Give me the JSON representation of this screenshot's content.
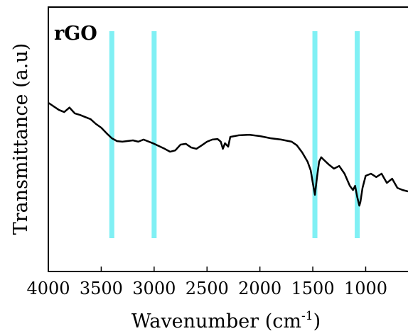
{
  "chart_data": {
    "type": "line",
    "annotation": "rGO",
    "xlabel": {
      "text": "Wavenumber (cm",
      "sup": "-1",
      "end": ")"
    },
    "ylabel": "Transmittance (a.u)",
    "xlim": [
      4000,
      600
    ],
    "ylim": [
      0,
      100
    ],
    "xticks": [
      4000,
      3500,
      3000,
      2500,
      2000,
      1500,
      1000
    ],
    "bands": {
      "color": "#80f0f4",
      "x": [
        3400,
        3000,
        1480,
        1080
      ]
    },
    "series": [
      {
        "color": "#000000",
        "x": [
          4000,
          3900,
          3850,
          3800,
          3750,
          3700,
          3650,
          3600,
          3550,
          3500,
          3450,
          3400,
          3350,
          3300,
          3200,
          3150,
          3100,
          3000,
          2900,
          2850,
          2800,
          2750,
          2700,
          2650,
          2600,
          2550,
          2500,
          2450,
          2400,
          2370,
          2350,
          2330,
          2300,
          2280,
          2200,
          2100,
          2000,
          1900,
          1800,
          1700,
          1650,
          1600,
          1550,
          1520,
          1500,
          1480,
          1460,
          1440,
          1420,
          1400,
          1350,
          1300,
          1250,
          1200,
          1150,
          1120,
          1100,
          1080,
          1060,
          1050,
          1030,
          1000,
          950,
          900,
          850,
          800,
          750,
          700,
          650,
          600
        ],
        "values": [
          63.8,
          61.1,
          60.3,
          62,
          59.8,
          59.2,
          58.4,
          57.6,
          55.8,
          54.4,
          52.3,
          50.4,
          49.3,
          49.1,
          49.6,
          49.1,
          49.9,
          48.3,
          46.4,
          45.3,
          45.8,
          48,
          48.3,
          46.9,
          46.4,
          47.7,
          49.1,
          49.9,
          50.1,
          49.1,
          46.4,
          48.5,
          47.2,
          50.9,
          51.5,
          51.7,
          51.2,
          50.4,
          49.9,
          49.1,
          47.7,
          45,
          41.6,
          38.3,
          33.5,
          29,
          35.7,
          41.6,
          43.2,
          42.4,
          40.5,
          38.9,
          39.9,
          37,
          32.4,
          30.8,
          32.4,
          28.2,
          24.9,
          26.3,
          31.6,
          36.2,
          37,
          35.7,
          37,
          33.5,
          35.1,
          31.6,
          30.8,
          30.3
        ]
      }
    ]
  }
}
